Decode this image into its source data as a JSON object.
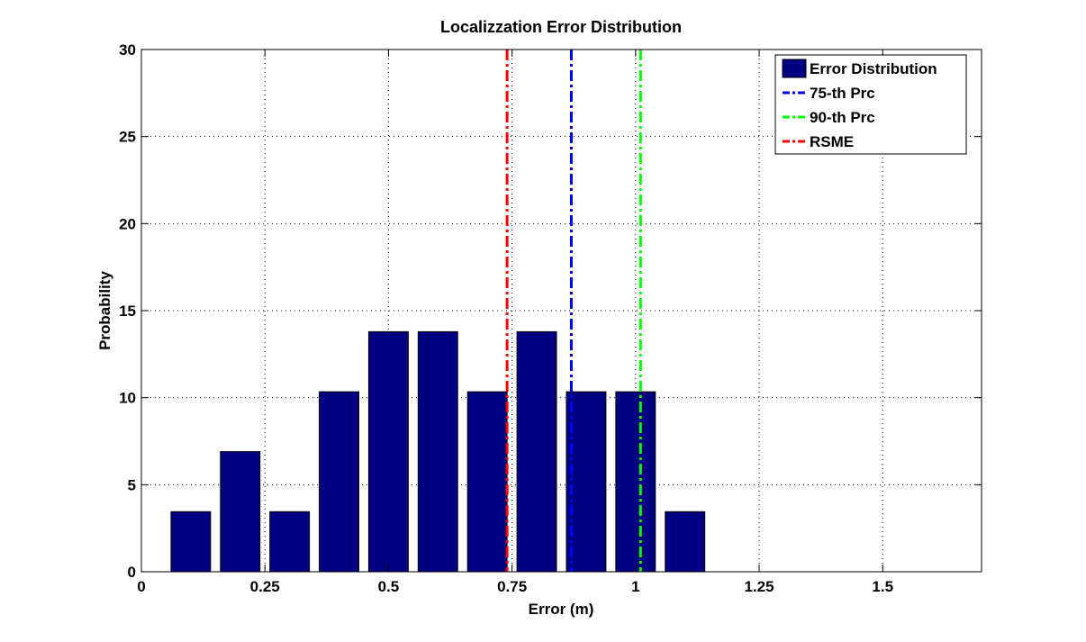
{
  "chart_data": {
    "type": "bar",
    "title": "Localizzation Error Distribution",
    "xlabel": "Error (m)",
    "ylabel": "Probability",
    "xlim": [
      0,
      1.7
    ],
    "ylim": [
      0,
      30
    ],
    "xticks": [
      0,
      0.25,
      0.5,
      0.75,
      1,
      1.25,
      1.5
    ],
    "xtick_labels": [
      "0",
      "0.25",
      "0.5",
      "0.75",
      "1",
      "1.25",
      "1.5"
    ],
    "yticks": [
      0,
      5,
      10,
      15,
      20,
      25,
      30
    ],
    "ytick_labels": [
      "0",
      "5",
      "10",
      "15",
      "20",
      "25",
      "30"
    ],
    "grid": true,
    "legend_position": "top-right",
    "bar_width": 0.08,
    "series": [
      {
        "name": "Error Distribution",
        "x": [
          0.1,
          0.2,
          0.3,
          0.4,
          0.5,
          0.6,
          0.7,
          0.8,
          0.9,
          1.0,
          1.1
        ],
        "values": [
          3.45,
          6.9,
          3.45,
          10.34,
          13.79,
          13.79,
          10.34,
          13.79,
          10.34,
          10.34,
          3.45
        ],
        "color": "#000080"
      }
    ],
    "reference_lines": [
      {
        "name": "75-th Prc",
        "x": 0.87,
        "color": "#0000ff",
        "style": "dash-dot"
      },
      {
        "name": "90-th Prc",
        "x": 1.01,
        "color": "#00ff00",
        "style": "dash-dot"
      },
      {
        "name": "RSME",
        "x": 0.74,
        "color": "#ff0000",
        "style": "dash-dot"
      }
    ]
  }
}
